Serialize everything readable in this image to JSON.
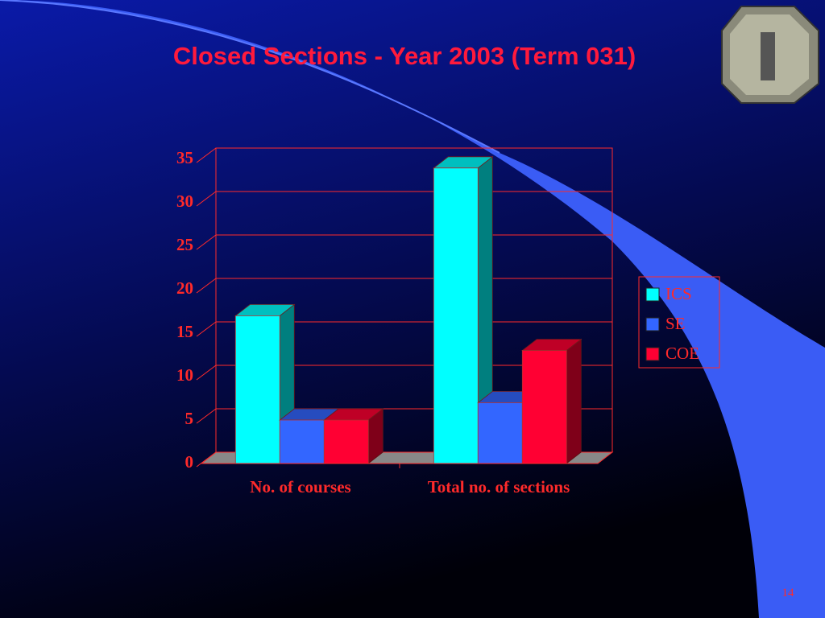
{
  "chart_data": {
    "type": "bar3d",
    "title": "Closed Sections - Year 2003 (Term 031)",
    "categories": [
      "No. of courses",
      "Total no. of sections"
    ],
    "series": [
      {
        "name": "ICS",
        "color": "#00ffff",
        "values": [
          17,
          34
        ]
      },
      {
        "name": "SE",
        "color": "#3366ff",
        "values": [
          5,
          7
        ]
      },
      {
        "name": "COE",
        "color": "#ff0033",
        "values": [
          5,
          13
        ]
      }
    ],
    "ylim": [
      0,
      35
    ],
    "yticks": [
      0,
      5,
      10,
      15,
      20,
      25,
      30,
      35
    ],
    "grid": true,
    "legend": "right"
  },
  "footer": {
    "page_number": "14"
  }
}
